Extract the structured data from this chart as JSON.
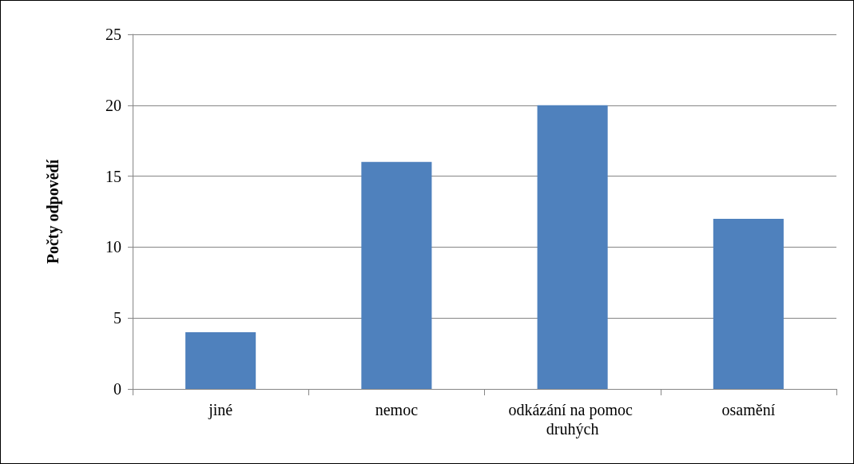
{
  "chart_data": {
    "type": "bar",
    "ylabel": "Počty odpovědí",
    "categories": [
      "jiné",
      "nemoc",
      "odkázání na pomoc druhých",
      "osamění"
    ],
    "values": [
      4,
      16,
      20,
      12
    ],
    "color": "#4f81bd",
    "ylim": [
      0,
      25
    ],
    "yticks": [
      0,
      5,
      10,
      15,
      20,
      25
    ],
    "grid": "y"
  }
}
